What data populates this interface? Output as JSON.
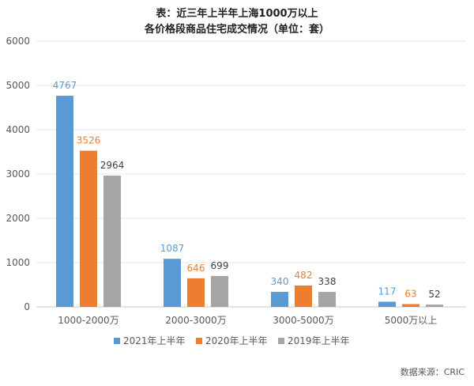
{
  "chart_data": {
    "type": "bar",
    "title": "表：近三年上半年上海1000万以上",
    "subtitle": "各价格段商品住宅成交情况（单位：套）",
    "categories": [
      "1000-2000万",
      "2000-3000万",
      "3000-5000万",
      "5000万以上"
    ],
    "series": [
      {
        "name": "2021年上半年",
        "color": "#5B9BD5",
        "values": [
          4767,
          1087,
          340,
          117
        ]
      },
      {
        "name": "2020年上半年",
        "color": "#ED7D31",
        "values": [
          3526,
          646,
          482,
          63
        ]
      },
      {
        "name": "2019年上半年",
        "color": "#A5A5A5",
        "values": [
          2964,
          699,
          338,
          52
        ]
      }
    ],
    "y_ticks": [
      0,
      1000,
      2000,
      3000,
      4000,
      5000,
      6000
    ],
    "ylim": [
      0,
      6000
    ],
    "xlabel": "",
    "ylabel": "",
    "grid": true,
    "legend_position": "bottom",
    "label_colors": [
      "#5B9BD5",
      "#ED7D31",
      "#404040"
    ],
    "source": "数据来源：CRIC"
  }
}
